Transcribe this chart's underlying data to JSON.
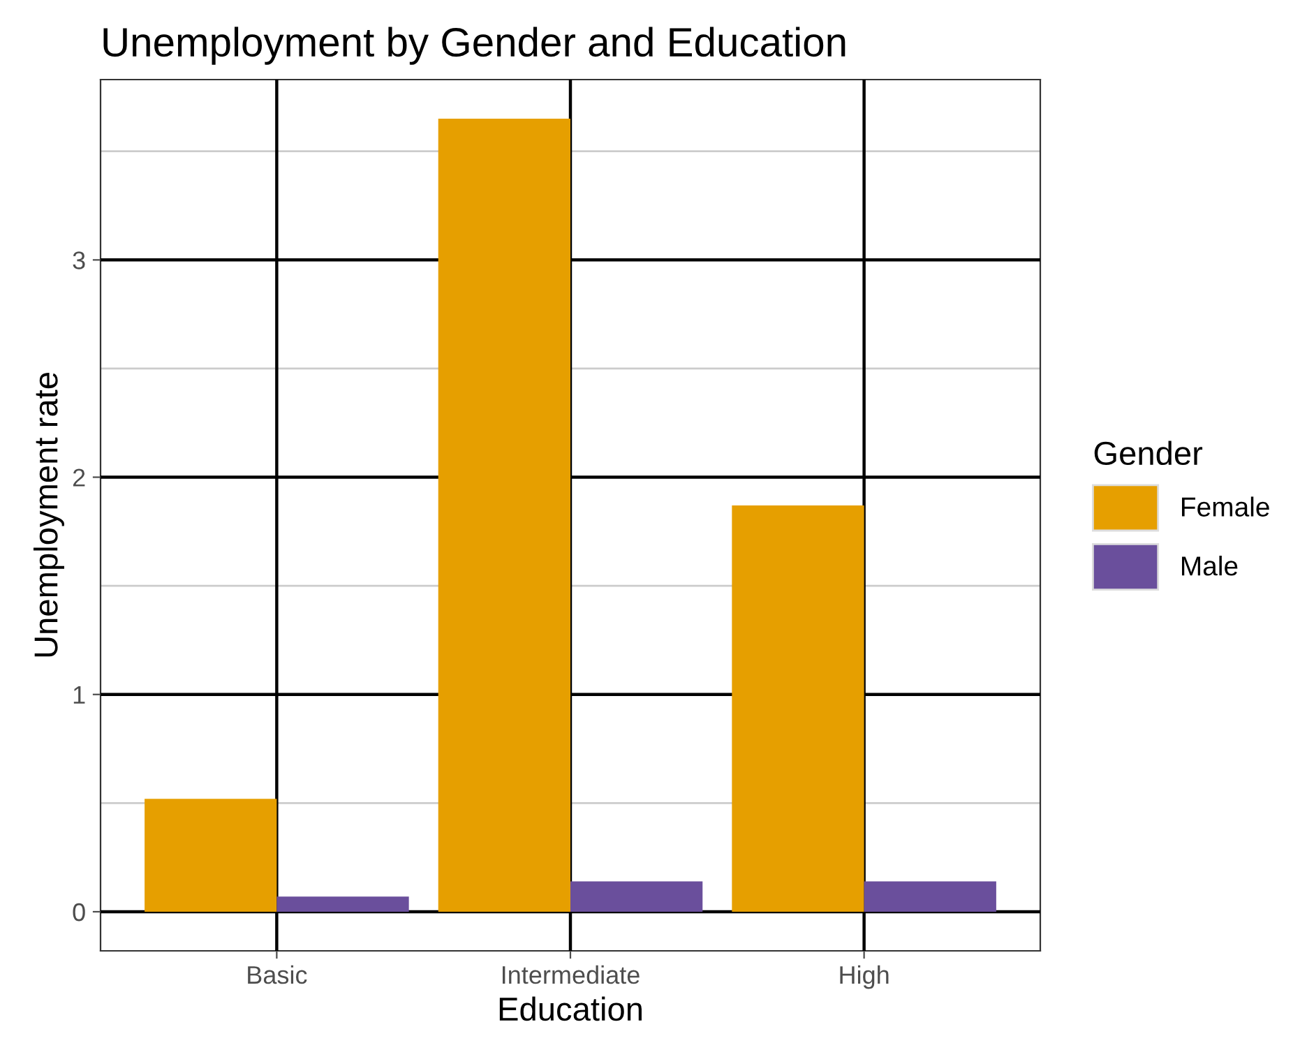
{
  "chart_data": {
    "type": "bar",
    "title": "Unemployment by Gender and Education",
    "xlabel": "Education",
    "ylabel": "Unemployment rate",
    "legend_title": "Gender",
    "categories": [
      "Basic",
      "Intermediate",
      "High"
    ],
    "series": [
      {
        "name": "Female",
        "color": "#e69f00",
        "values": [
          0.52,
          3.65,
          1.87
        ]
      },
      {
        "name": "Male",
        "color": "#6a4f9c",
        "values": [
          0.07,
          0.14,
          0.14
        ]
      }
    ],
    "ylim": [
      -0.18,
      3.83
    ],
    "yticks": [
      0,
      1,
      2,
      3
    ],
    "grid": true,
    "legend": "right"
  }
}
